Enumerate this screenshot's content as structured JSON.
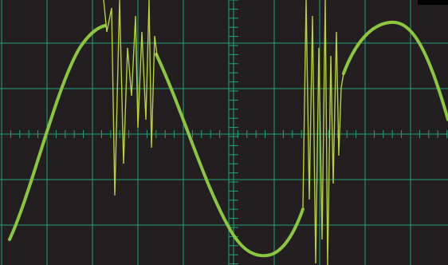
{
  "scope": {
    "background_color": "#231f20",
    "grid_color": "#1fa37a",
    "trace_color": "#8cc63f",
    "noise_color": "#b5d334",
    "graticule": {
      "horizontal_divisions": 10,
      "vertical_divisions": 6,
      "minor_ticks_per_division": 5
    }
  }
}
